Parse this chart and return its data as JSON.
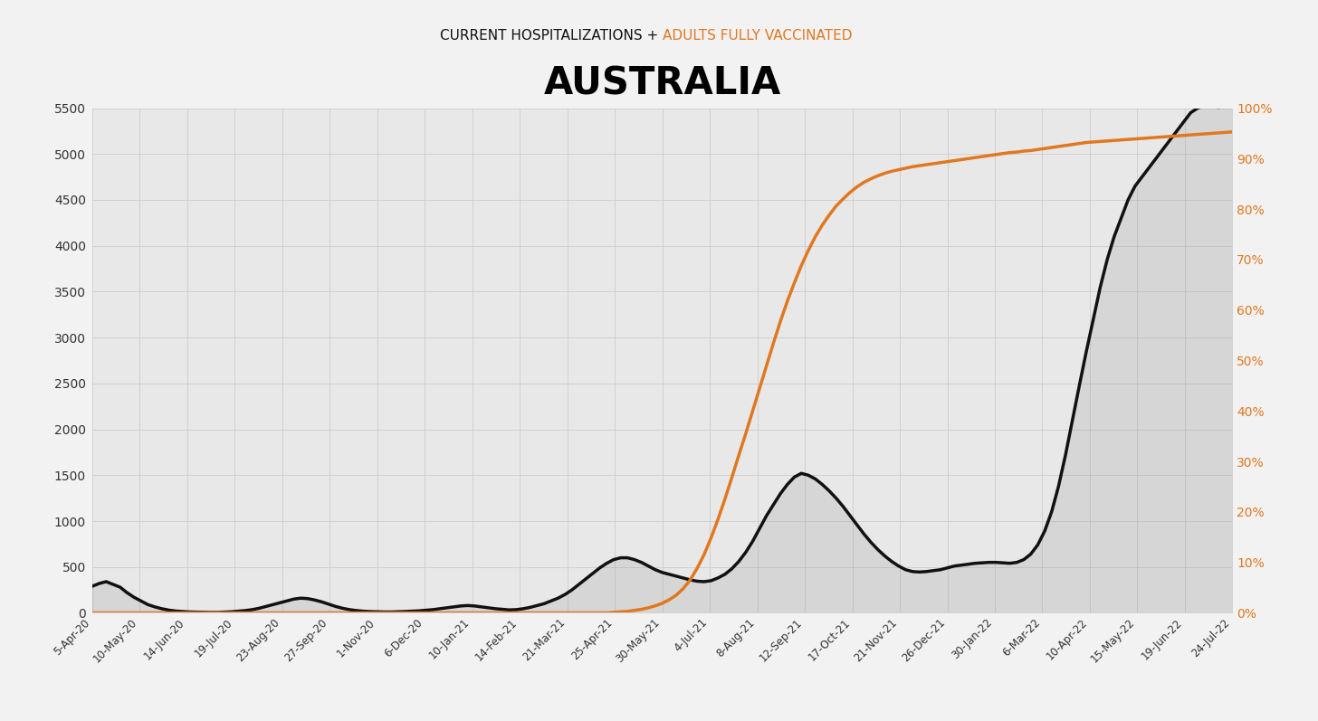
{
  "title_sub_black": "CURRENT HOSPITALIZATIONS + ",
  "title_sub_orange": "ADULTS FULLY VACCINATED",
  "title_main": "AUSTRALIA",
  "bg_color": "#F2F2F2",
  "plot_bg_color": "#E8E8E8",
  "hosp_color": "#111111",
  "vacc_color": "#E07820",
  "ylim_left": [
    0,
    5500
  ],
  "ylim_right": [
    0,
    1.0
  ],
  "yticks_left": [
    0,
    500,
    1000,
    1500,
    2000,
    2500,
    3000,
    3500,
    4000,
    4500,
    5000,
    5500
  ],
  "yticks_right": [
    0.0,
    0.1,
    0.2,
    0.3,
    0.4,
    0.5,
    0.6,
    0.7,
    0.8,
    0.9,
    1.0
  ],
  "ytick_labels_right": [
    "0%",
    "10%",
    "20%",
    "30%",
    "40%",
    "50%",
    "60%",
    "70%",
    "80%",
    "90%",
    "100%"
  ],
  "x_tick_labels": [
    "5-Apr-20",
    "10-May-20",
    "14-Jun-20",
    "19-Jul-20",
    "23-Aug-20",
    "27-Sep-20",
    "1-Nov-20",
    "6-Dec-20",
    "10-Jan-21",
    "14-Feb-21",
    "21-Mar-21",
    "25-Apr-21",
    "30-May-21",
    "4-Jul-21",
    "8-Aug-21",
    "12-Sep-21",
    "17-Oct-21",
    "21-Nov-21",
    "26-Dec-21",
    "30-Jan-22",
    "6-Mar-22",
    "10-Apr-22",
    "15-May-22",
    "19-Jun-22",
    "24-Jul-22"
  ],
  "hosp_data": [
    [
      0,
      290
    ],
    [
      5,
      320
    ],
    [
      10,
      340
    ],
    [
      15,
      310
    ],
    [
      20,
      280
    ],
    [
      25,
      220
    ],
    [
      30,
      170
    ],
    [
      35,
      130
    ],
    [
      40,
      90
    ],
    [
      45,
      65
    ],
    [
      50,
      45
    ],
    [
      55,
      30
    ],
    [
      60,
      20
    ],
    [
      65,
      15
    ],
    [
      70,
      10
    ],
    [
      75,
      8
    ],
    [
      80,
      6
    ],
    [
      85,
      5
    ],
    [
      90,
      5
    ],
    [
      95,
      8
    ],
    [
      100,
      12
    ],
    [
      105,
      18
    ],
    [
      110,
      25
    ],
    [
      115,
      35
    ],
    [
      120,
      50
    ],
    [
      125,
      70
    ],
    [
      130,
      90
    ],
    [
      135,
      110
    ],
    [
      140,
      130
    ],
    [
      145,
      150
    ],
    [
      150,
      160
    ],
    [
      155,
      155
    ],
    [
      160,
      140
    ],
    [
      165,
      120
    ],
    [
      170,
      95
    ],
    [
      175,
      70
    ],
    [
      180,
      50
    ],
    [
      185,
      35
    ],
    [
      190,
      25
    ],
    [
      195,
      18
    ],
    [
      200,
      14
    ],
    [
      205,
      12
    ],
    [
      210,
      10
    ],
    [
      215,
      10
    ],
    [
      220,
      12
    ],
    [
      225,
      15
    ],
    [
      230,
      18
    ],
    [
      235,
      22
    ],
    [
      240,
      28
    ],
    [
      245,
      35
    ],
    [
      250,
      45
    ],
    [
      255,
      55
    ],
    [
      260,
      65
    ],
    [
      265,
      75
    ],
    [
      270,
      80
    ],
    [
      275,
      75
    ],
    [
      280,
      65
    ],
    [
      285,
      55
    ],
    [
      290,
      45
    ],
    [
      295,
      38
    ],
    [
      300,
      32
    ],
    [
      305,
      35
    ],
    [
      310,
      45
    ],
    [
      315,
      60
    ],
    [
      320,
      80
    ],
    [
      325,
      100
    ],
    [
      330,
      130
    ],
    [
      335,
      160
    ],
    [
      340,
      200
    ],
    [
      345,
      250
    ],
    [
      350,
      310
    ],
    [
      355,
      370
    ],
    [
      360,
      430
    ],
    [
      365,
      490
    ],
    [
      370,
      540
    ],
    [
      375,
      580
    ],
    [
      380,
      600
    ],
    [
      385,
      600
    ],
    [
      390,
      580
    ],
    [
      395,
      550
    ],
    [
      400,
      510
    ],
    [
      405,
      470
    ],
    [
      410,
      440
    ],
    [
      415,
      420
    ],
    [
      420,
      400
    ],
    [
      425,
      380
    ],
    [
      430,
      360
    ],
    [
      435,
      345
    ],
    [
      440,
      340
    ],
    [
      445,
      350
    ],
    [
      450,
      380
    ],
    [
      455,
      420
    ],
    [
      460,
      480
    ],
    [
      465,
      560
    ],
    [
      470,
      660
    ],
    [
      475,
      780
    ],
    [
      480,
      920
    ],
    [
      485,
      1060
    ],
    [
      490,
      1180
    ],
    [
      495,
      1300
    ],
    [
      500,
      1400
    ],
    [
      505,
      1480
    ],
    [
      510,
      1520
    ],
    [
      515,
      1500
    ],
    [
      520,
      1460
    ],
    [
      525,
      1400
    ],
    [
      530,
      1330
    ],
    [
      535,
      1250
    ],
    [
      540,
      1160
    ],
    [
      545,
      1060
    ],
    [
      550,
      960
    ],
    [
      555,
      860
    ],
    [
      560,
      770
    ],
    [
      565,
      690
    ],
    [
      570,
      620
    ],
    [
      575,
      560
    ],
    [
      580,
      510
    ],
    [
      585,
      470
    ],
    [
      590,
      450
    ],
    [
      595,
      445
    ],
    [
      600,
      450
    ],
    [
      605,
      460
    ],
    [
      610,
      470
    ],
    [
      615,
      490
    ],
    [
      620,
      510
    ],
    [
      625,
      520
    ],
    [
      630,
      530
    ],
    [
      635,
      540
    ],
    [
      640,
      545
    ],
    [
      645,
      550
    ],
    [
      650,
      550
    ],
    [
      655,
      545
    ],
    [
      660,
      540
    ],
    [
      665,
      550
    ],
    [
      670,
      580
    ],
    [
      675,
      640
    ],
    [
      680,
      740
    ],
    [
      685,
      890
    ],
    [
      690,
      1100
    ],
    [
      695,
      1380
    ],
    [
      700,
      1720
    ],
    [
      705,
      2100
    ],
    [
      710,
      2480
    ],
    [
      715,
      2850
    ],
    [
      720,
      3200
    ],
    [
      725,
      3550
    ],
    [
      730,
      3850
    ],
    [
      735,
      4100
    ],
    [
      740,
      4300
    ],
    [
      745,
      4500
    ],
    [
      750,
      4650
    ],
    [
      755,
      4750
    ],
    [
      760,
      4850
    ],
    [
      765,
      4950
    ],
    [
      770,
      5050
    ],
    [
      775,
      5150
    ],
    [
      780,
      5250
    ],
    [
      785,
      5350
    ],
    [
      790,
      5450
    ],
    [
      795,
      5500
    ],
    [
      800,
      5530
    ],
    [
      805,
      5520
    ],
    [
      810,
      5510
    ],
    [
      815,
      5520
    ],
    [
      820,
      5530
    ]
  ],
  "vacc_data": [
    [
      0,
      0.0
    ],
    [
      10,
      0.0
    ],
    [
      20,
      0.0
    ],
    [
      30,
      0.0
    ],
    [
      40,
      0.0
    ],
    [
      50,
      0.0
    ],
    [
      60,
      0.0
    ],
    [
      70,
      0.0
    ],
    [
      80,
      0.0
    ],
    [
      90,
      0.0
    ],
    [
      100,
      0.0
    ],
    [
      110,
      0.0
    ],
    [
      120,
      0.0
    ],
    [
      130,
      0.0
    ],
    [
      140,
      0.0
    ],
    [
      150,
      0.0
    ],
    [
      160,
      0.0
    ],
    [
      170,
      0.0
    ],
    [
      180,
      0.0
    ],
    [
      190,
      0.0
    ],
    [
      200,
      0.0
    ],
    [
      210,
      0.0
    ],
    [
      220,
      0.0
    ],
    [
      230,
      0.0
    ],
    [
      240,
      0.0
    ],
    [
      250,
      0.0
    ],
    [
      260,
      0.0
    ],
    [
      270,
      0.0
    ],
    [
      280,
      0.0
    ],
    [
      290,
      0.0
    ],
    [
      300,
      0.0
    ],
    [
      310,
      0.0
    ],
    [
      320,
      0.0
    ],
    [
      330,
      0.0
    ],
    [
      340,
      0.0
    ],
    [
      350,
      0.0
    ],
    [
      360,
      0.0
    ],
    [
      370,
      0.0
    ],
    [
      375,
      0.001
    ],
    [
      380,
      0.002
    ],
    [
      385,
      0.003
    ],
    [
      390,
      0.005
    ],
    [
      395,
      0.007
    ],
    [
      400,
      0.01
    ],
    [
      405,
      0.014
    ],
    [
      410,
      0.019
    ],
    [
      415,
      0.026
    ],
    [
      420,
      0.035
    ],
    [
      425,
      0.048
    ],
    [
      430,
      0.065
    ],
    [
      435,
      0.088
    ],
    [
      440,
      0.115
    ],
    [
      445,
      0.148
    ],
    [
      450,
      0.185
    ],
    [
      455,
      0.225
    ],
    [
      460,
      0.268
    ],
    [
      465,
      0.312
    ],
    [
      470,
      0.355
    ],
    [
      475,
      0.4
    ],
    [
      480,
      0.445
    ],
    [
      485,
      0.49
    ],
    [
      490,
      0.535
    ],
    [
      495,
      0.578
    ],
    [
      500,
      0.618
    ],
    [
      505,
      0.654
    ],
    [
      510,
      0.688
    ],
    [
      515,
      0.718
    ],
    [
      520,
      0.745
    ],
    [
      525,
      0.768
    ],
    [
      530,
      0.788
    ],
    [
      535,
      0.806
    ],
    [
      540,
      0.82
    ],
    [
      545,
      0.833
    ],
    [
      550,
      0.844
    ],
    [
      555,
      0.853
    ],
    [
      560,
      0.86
    ],
    [
      565,
      0.866
    ],
    [
      570,
      0.871
    ],
    [
      575,
      0.875
    ],
    [
      580,
      0.878
    ],
    [
      585,
      0.881
    ],
    [
      590,
      0.884
    ],
    [
      595,
      0.886
    ],
    [
      600,
      0.888
    ],
    [
      605,
      0.89
    ],
    [
      610,
      0.892
    ],
    [
      615,
      0.894
    ],
    [
      620,
      0.896
    ],
    [
      625,
      0.898
    ],
    [
      630,
      0.9
    ],
    [
      635,
      0.902
    ],
    [
      640,
      0.904
    ],
    [
      645,
      0.906
    ],
    [
      650,
      0.908
    ],
    [
      655,
      0.91
    ],
    [
      660,
      0.912
    ],
    [
      665,
      0.913
    ],
    [
      670,
      0.915
    ],
    [
      675,
      0.916
    ],
    [
      680,
      0.918
    ],
    [
      685,
      0.92
    ],
    [
      690,
      0.922
    ],
    [
      695,
      0.924
    ],
    [
      700,
      0.926
    ],
    [
      705,
      0.928
    ],
    [
      710,
      0.93
    ],
    [
      715,
      0.932
    ],
    [
      720,
      0.933
    ],
    [
      725,
      0.934
    ],
    [
      730,
      0.935
    ],
    [
      735,
      0.936
    ],
    [
      740,
      0.937
    ],
    [
      745,
      0.938
    ],
    [
      750,
      0.939
    ],
    [
      755,
      0.94
    ],
    [
      760,
      0.941
    ],
    [
      765,
      0.942
    ],
    [
      770,
      0.943
    ],
    [
      775,
      0.944
    ],
    [
      780,
      0.945
    ],
    [
      785,
      0.946
    ],
    [
      790,
      0.947
    ],
    [
      795,
      0.948
    ],
    [
      800,
      0.949
    ],
    [
      805,
      0.95
    ],
    [
      810,
      0.951
    ],
    [
      815,
      0.952
    ],
    [
      820,
      0.953
    ]
  ]
}
